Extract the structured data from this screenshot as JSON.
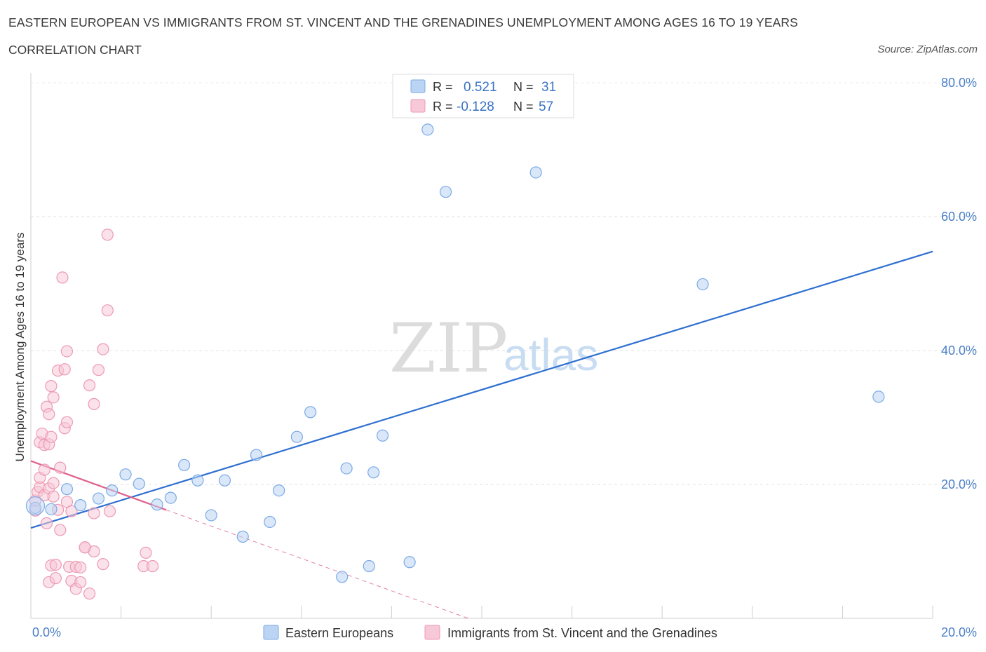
{
  "chart_data": {
    "type": "scatter",
    "title": "EASTERN EUROPEAN VS IMMIGRANTS FROM ST. VINCENT AND THE GRENADINES UNEMPLOYMENT AMONG AGES 16 TO 19 YEARS",
    "subtitle": "CORRELATION CHART",
    "source": "Source: ZipAtlas.com",
    "xlabel": "",
    "ylabel": "Unemployment Among Ages 16 to 19 years",
    "xlim": [
      0,
      20
    ],
    "ylim": [
      0,
      80
    ],
    "x_tick_labels": [
      "0.0%",
      "20.0%"
    ],
    "y_ticks": [
      20,
      40,
      60,
      80
    ],
    "y_tick_labels": [
      "20.0%",
      "40.0%",
      "60.0%",
      "80.0%"
    ],
    "watermark": {
      "zip": "ZIP",
      "atlas": "atlas"
    },
    "legend": {
      "r_label": "R =",
      "n_label": "N =",
      "entries": [
        {
          "r": "0.521",
          "n": "31"
        },
        {
          "r": "-0.128",
          "n": "57"
        }
      ]
    },
    "series": [
      {
        "name": "Eastern Europeans",
        "color": "#7aaae6",
        "fill": "#bcd4f3",
        "line_color": "#2e6fd0",
        "trend": {
          "x0": 0,
          "y0": 13.5,
          "x1": 20,
          "y1": 54.8
        },
        "points": [
          [
            0.1,
            16.5
          ],
          [
            0.45,
            16.3
          ],
          [
            0.8,
            19.3
          ],
          [
            1.1,
            16.9
          ],
          [
            1.5,
            17.9
          ],
          [
            1.8,
            19.1
          ],
          [
            2.1,
            21.5
          ],
          [
            2.4,
            20.1
          ],
          [
            2.8,
            17.0
          ],
          [
            3.1,
            18.0
          ],
          [
            3.4,
            22.9
          ],
          [
            3.7,
            20.6
          ],
          [
            4.0,
            15.4
          ],
          [
            4.3,
            20.6
          ],
          [
            4.7,
            12.2
          ],
          [
            5.0,
            24.4
          ],
          [
            5.3,
            14.4
          ],
          [
            5.5,
            19.1
          ],
          [
            5.9,
            27.1
          ],
          [
            6.2,
            30.8
          ],
          [
            6.9,
            6.2
          ],
          [
            7.0,
            22.4
          ],
          [
            7.5,
            7.8
          ],
          [
            7.6,
            21.8
          ],
          [
            7.8,
            27.3
          ],
          [
            8.4,
            8.4
          ],
          [
            8.8,
            73.0
          ],
          [
            9.2,
            63.7
          ],
          [
            11.2,
            66.6
          ],
          [
            14.9,
            49.9
          ],
          [
            18.8,
            33.1
          ]
        ]
      },
      {
        "name": "Immigrants from St. Vincent and the Grenadines",
        "color": "#ec9ab4",
        "fill": "#f7c8d7",
        "line_color": "#e0608e",
        "trend": {
          "x0": 0,
          "y0": 23.5,
          "x1": 3.0,
          "y1": 16.2
        },
        "trend_dashed": {
          "x0": 3.0,
          "y0": 16.2,
          "x1": 9.7,
          "y1": 0
        },
        "points": [
          [
            0.1,
            16.1
          ],
          [
            0.1,
            17.6
          ],
          [
            0.15,
            18.9
          ],
          [
            0.2,
            19.6
          ],
          [
            0.2,
            21.0
          ],
          [
            0.2,
            26.3
          ],
          [
            0.25,
            27.6
          ],
          [
            0.3,
            18.4
          ],
          [
            0.3,
            22.2
          ],
          [
            0.3,
            25.9
          ],
          [
            0.35,
            14.2
          ],
          [
            0.35,
            31.6
          ],
          [
            0.4,
            19.4
          ],
          [
            0.4,
            30.5
          ],
          [
            0.4,
            26.0
          ],
          [
            0.45,
            27.1
          ],
          [
            0.45,
            34.7
          ],
          [
            0.5,
            33.0
          ],
          [
            0.5,
            20.2
          ],
          [
            0.5,
            18.2
          ],
          [
            0.4,
            5.4
          ],
          [
            0.45,
            7.9
          ],
          [
            0.55,
            6.0
          ],
          [
            0.6,
            37.0
          ],
          [
            0.6,
            16.2
          ],
          [
            0.65,
            13.2
          ],
          [
            0.65,
            22.5
          ],
          [
            0.7,
            50.9
          ],
          [
            0.75,
            37.2
          ],
          [
            0.8,
            39.9
          ],
          [
            0.75,
            28.4
          ],
          [
            0.8,
            29.3
          ],
          [
            0.8,
            17.4
          ],
          [
            0.85,
            7.7
          ],
          [
            0.9,
            5.6
          ],
          [
            1.0,
            4.4
          ],
          [
            1.0,
            7.7
          ],
          [
            1.1,
            5.4
          ],
          [
            1.2,
            10.6
          ],
          [
            1.1,
            7.6
          ],
          [
            1.3,
            3.7
          ],
          [
            1.3,
            34.8
          ],
          [
            1.4,
            15.7
          ],
          [
            1.4,
            10.0
          ],
          [
            1.4,
            32.0
          ],
          [
            1.5,
            37.1
          ],
          [
            1.6,
            40.2
          ],
          [
            1.6,
            8.1
          ],
          [
            1.75,
            16.0
          ],
          [
            1.7,
            46.0
          ],
          [
            1.7,
            57.3
          ],
          [
            2.5,
            7.8
          ],
          [
            2.55,
            9.8
          ],
          [
            2.7,
            7.8
          ],
          [
            1.2,
            10.6
          ],
          [
            0.55,
            8.0
          ],
          [
            0.9,
            16.0
          ]
        ]
      }
    ]
  }
}
